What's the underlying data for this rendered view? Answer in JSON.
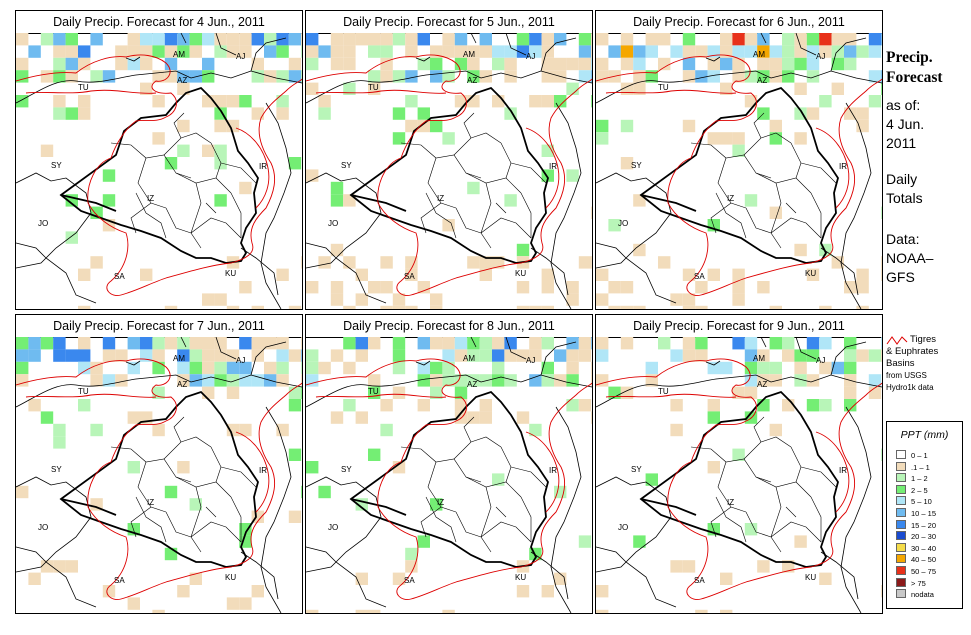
{
  "panels": [
    {
      "title": "Daily Precip. Forecast for  4 Jun., 2011"
    },
    {
      "title": "Daily Precip. Forecast for  5 Jun., 2011"
    },
    {
      "title": "Daily Precip. Forecast for  6 Jun., 2011"
    },
    {
      "title": "Daily Precip. Forecast for  7 Jun., 2011"
    },
    {
      "title": "Daily Precip. Forecast for  8 Jun., 2011"
    },
    {
      "title": "Daily Precip. Forecast for  9 Jun., 2011"
    }
  ],
  "map_labels": {
    "am": "AM",
    "aj": "AJ",
    "az": "AZ",
    "tu": "TU",
    "sy": "SY",
    "ir": "IR",
    "jo": "JO",
    "sa": "SA",
    "ku": "KU",
    "iz": "IZ"
  },
  "sidebar": {
    "title_line1": "Precip.",
    "title_line2": "Forecast",
    "asof_line1": "as of:",
    "asof_line2": "4 Jun.",
    "asof_line3": "2011",
    "totals_line1": "Daily",
    "totals_line2": "Totals",
    "data_line1": "Data:",
    "data_line2": "NOAA–",
    "data_line3": "GFS"
  },
  "basin_legend": {
    "line1": "Tigres",
    "line2": "& Euphrates",
    "line3": "Basins",
    "line4": "from USGS",
    "line5": "Hydro1k data",
    "line_color": "#dd0000"
  },
  "legend": {
    "title": "PPT (mm)",
    "items": [
      {
        "label": "0 – 1",
        "color": "#ffffff"
      },
      {
        "label": ".1 – 1",
        "color": "#f2dcbb"
      },
      {
        "label": "1 – 2",
        "color": "#b8f5b8"
      },
      {
        "label": "2 – 5",
        "color": "#74ee74"
      },
      {
        "label": "5 – 10",
        "color": "#b0e6f7"
      },
      {
        "label": "10 – 15",
        "color": "#6fbbf0"
      },
      {
        "label": "15 – 20",
        "color": "#3a88ee"
      },
      {
        "label": "20 – 30",
        "color": "#1a4bd0"
      },
      {
        "label": "30 – 40",
        "color": "#f5dc4a"
      },
      {
        "label": "40 – 50",
        "color": "#f5a700"
      },
      {
        "label": "50 – 75",
        "color": "#e8311a"
      },
      {
        "label": "> 75",
        "color": "#8b1a1a"
      },
      {
        "label": "nodata",
        "color": "#c8c8c8"
      }
    ]
  },
  "colors": {
    "country_border": "#000000",
    "admin_border": "#000000",
    "basin": "#dd0000"
  }
}
